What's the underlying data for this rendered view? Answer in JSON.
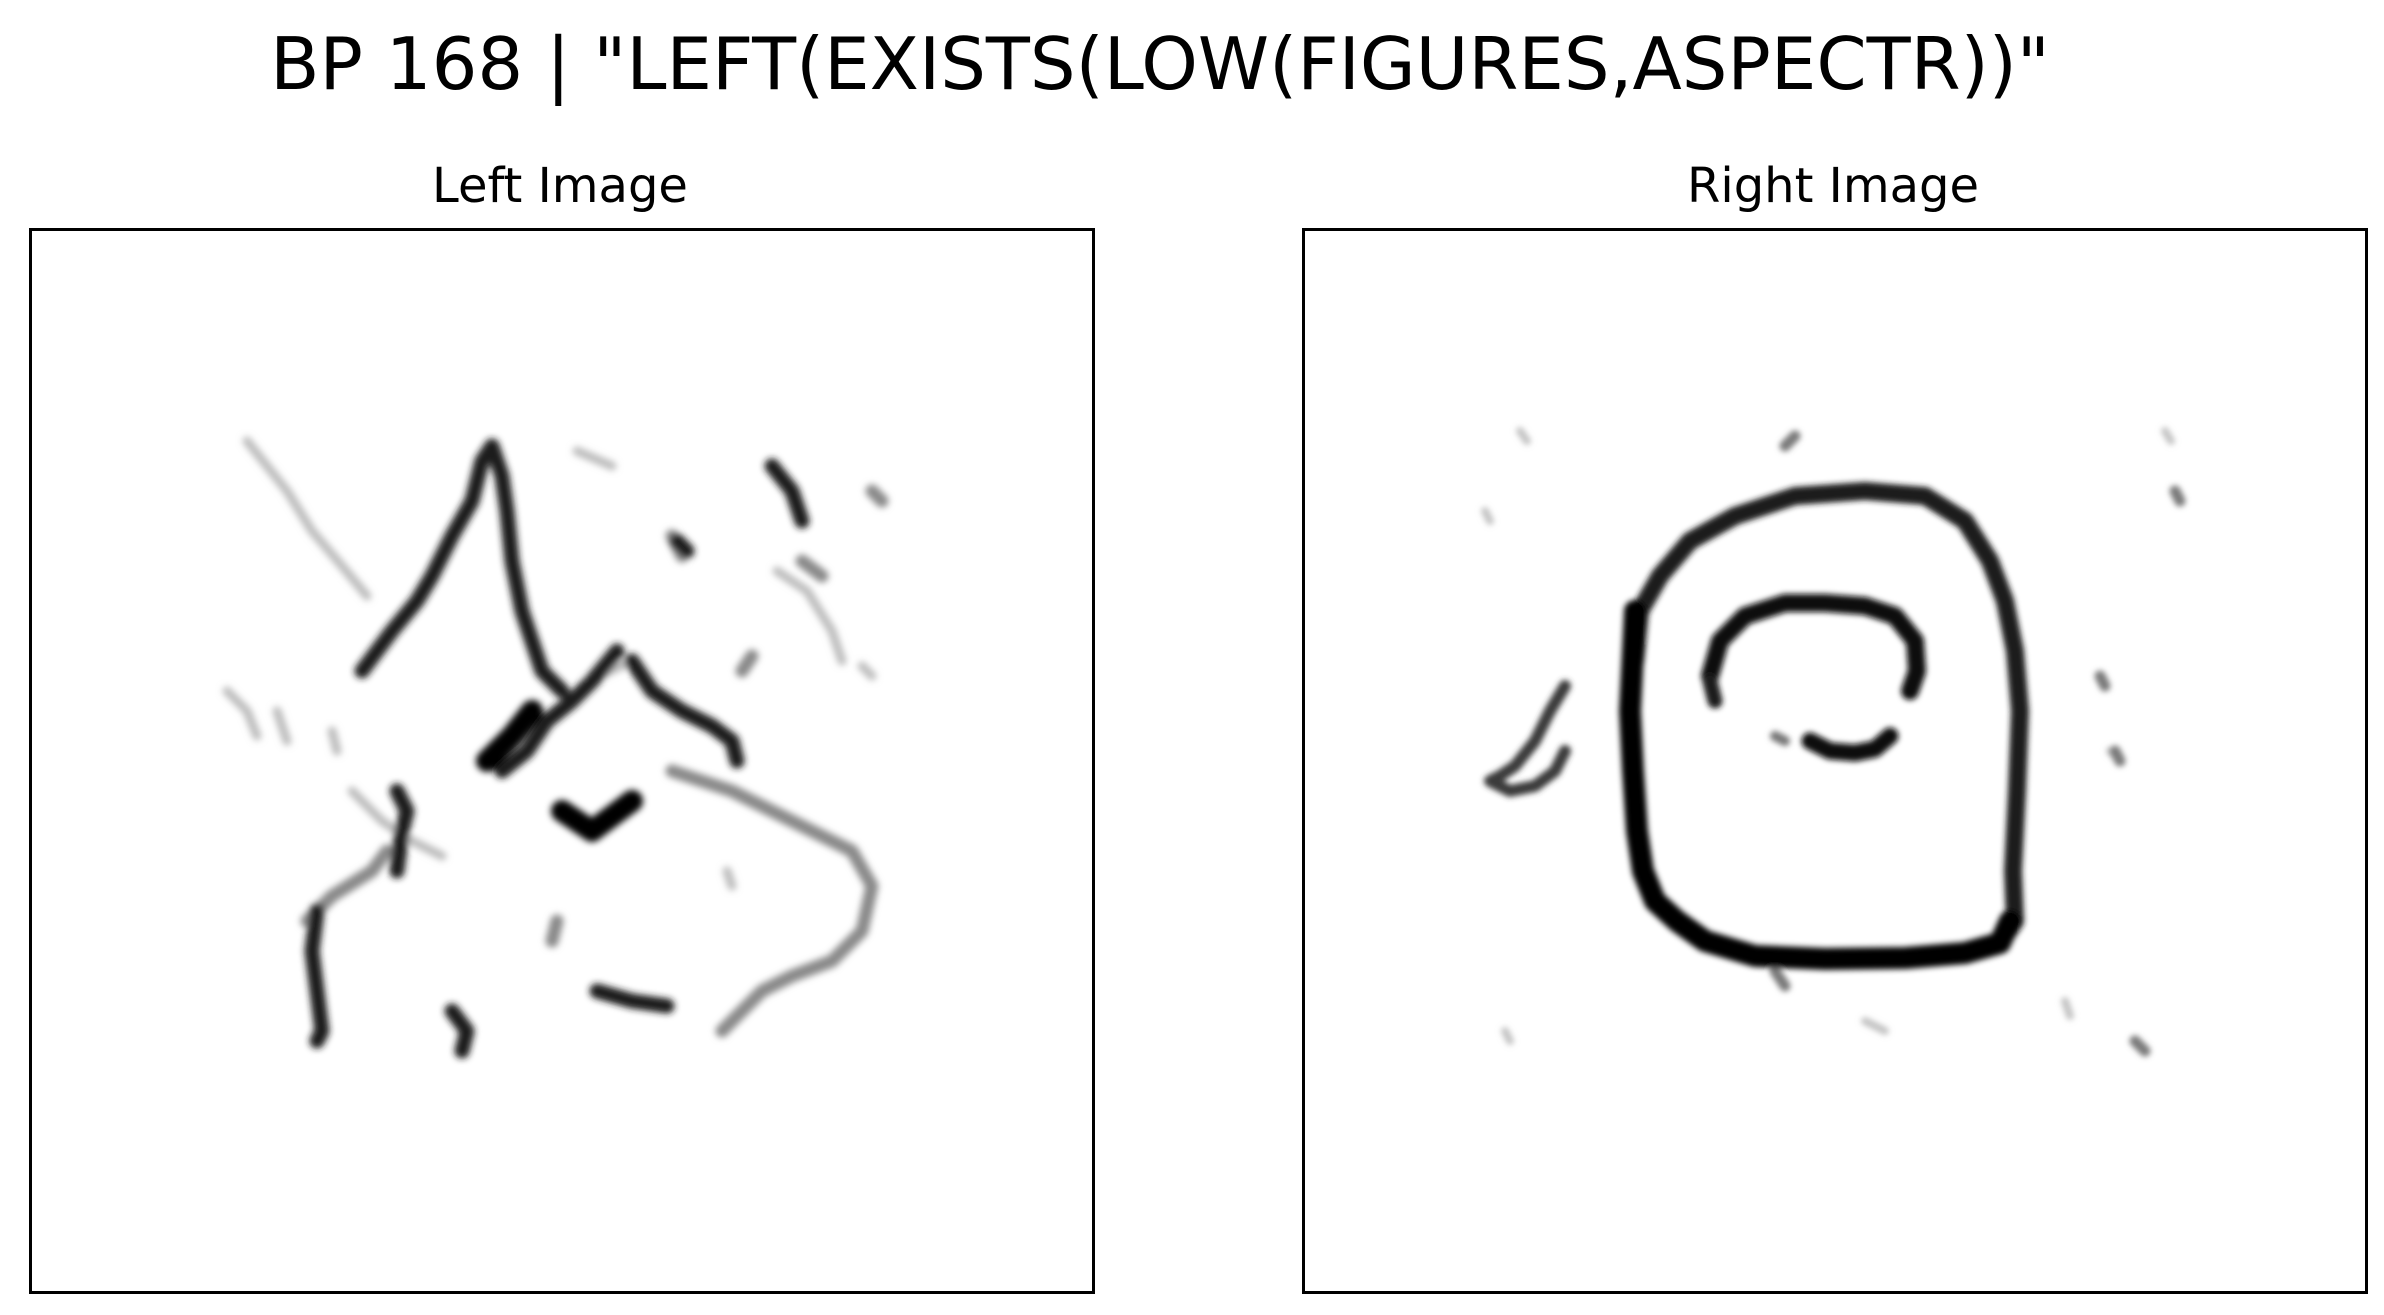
{
  "figure": {
    "title": "BP 168 | \"LEFT(EXISTS(LOW(FIGURES,ASPECTR))\""
  },
  "panels": [
    {
      "title": "Left Image",
      "content": "sketch-of-irregular-broken-strokes",
      "ink_color": "#000000"
    },
    {
      "title": "Right Image",
      "content": "sketch-of-rounded-square-with-inner-arcs",
      "ink_color": "#000000"
    }
  ]
}
